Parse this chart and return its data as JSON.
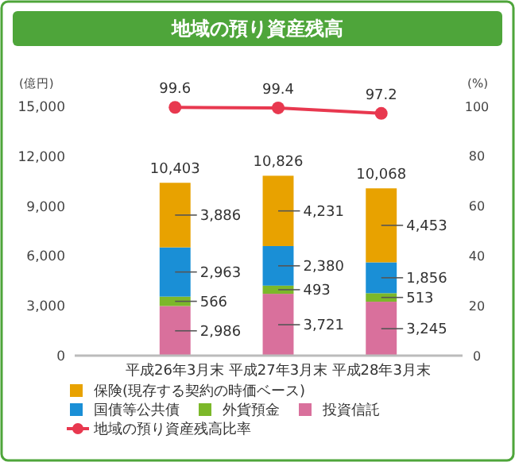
{
  "chart_data": {
    "type": "bar",
    "title": "地域の預り資産残高",
    "ylabel": "(億円)",
    "y2label": "(%)",
    "categories": [
      "平成26年3月末",
      "平成27年3月末",
      "平成28年3月末"
    ],
    "stacked": true,
    "ylim": [
      0,
      15000
    ],
    "yticks": [
      0,
      {
        "value": 3000,
        "label": "3,000"
      },
      {
        "value": 6000,
        "label": "6,000"
      },
      {
        "value": 9000,
        "label": "9,000"
      },
      {
        "value": 12000,
        "label": "12,000"
      },
      {
        "value": 15000,
        "label": "15,000"
      }
    ],
    "y2lim": [
      0,
      100
    ],
    "y2ticks": [
      0,
      20,
      40,
      60,
      80,
      100
    ],
    "legend": "bottom",
    "grid": false,
    "totals": [
      "10,403",
      "10,826",
      "10,068"
    ],
    "series": [
      {
        "name": "投資信託",
        "color": "#d9709c",
        "values": [
          2986,
          3721,
          3245
        ],
        "value_labels": [
          "2,986",
          "3,721",
          "3,245"
        ]
      },
      {
        "name": "外貨預金",
        "color": "#7cb82a",
        "values": [
          566,
          493,
          513
        ],
        "value_labels": [
          "566",
          "493",
          "513"
        ]
      },
      {
        "name": "国債等公共債",
        "color": "#1a8fd6",
        "values": [
          2963,
          2380,
          1856
        ],
        "value_labels": [
          "2,963",
          "2,380",
          "1,856"
        ]
      },
      {
        "name": "保険(現存する契約の時価ベース)",
        "color": "#e8a200",
        "values": [
          3886,
          4231,
          4453
        ],
        "value_labels": [
          "3,886",
          "4,231",
          "4,453"
        ]
      },
      {
        "name": "地域の預り資産残高比率",
        "type": "line",
        "axis": "y2",
        "color": "#e8384f",
        "marker": "circle",
        "values": [
          99.6,
          99.4,
          97.2
        ],
        "value_labels": [
          "99.6",
          "99.4",
          "97.2"
        ]
      }
    ]
  }
}
